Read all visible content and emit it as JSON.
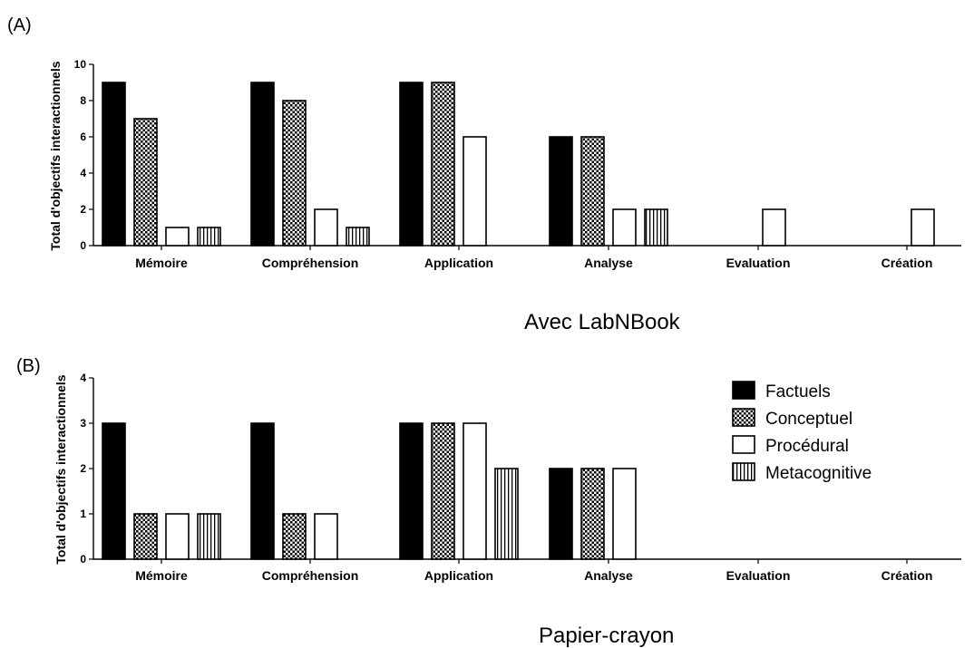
{
  "colors": {
    "ink": "#000000",
    "paper": "#ffffff"
  },
  "legend": {
    "placement": "right",
    "items": [
      {
        "label": "Factuels",
        "pattern": "solid"
      },
      {
        "label": "Conceptuel",
        "pattern": "checker"
      },
      {
        "label": "Procédural",
        "pattern": "empty"
      },
      {
        "label": "Metacognitive",
        "pattern": "vstripes"
      }
    ]
  },
  "chart_data": [
    {
      "type": "bar",
      "panel": "(A)",
      "caption": "Avec LabNBook",
      "ylabel": "Total d'objectifs interactionnels",
      "xlabel": "",
      "ylim": [
        0,
        10
      ],
      "yticks": [
        0,
        2,
        4,
        6,
        8,
        10
      ],
      "categories": [
        "Mémoire",
        "Compréhension",
        "Application",
        "Analyse",
        "Evaluation",
        "Création"
      ],
      "series": [
        {
          "name": "Factuels",
          "values": [
            9,
            9,
            9,
            6,
            0,
            0
          ]
        },
        {
          "name": "Conceptuel",
          "values": [
            7,
            8,
            9,
            6,
            0,
            0
          ]
        },
        {
          "name": "Procédural",
          "values": [
            1,
            2,
            6,
            2,
            2,
            2
          ]
        },
        {
          "name": "Metacognitive",
          "values": [
            1,
            1,
            0,
            2,
            0,
            0
          ]
        }
      ]
    },
    {
      "type": "bar",
      "panel": "(B)",
      "caption": "Papier-crayon",
      "ylabel": "Total d'objectifs interactionnels",
      "xlabel": "",
      "ylim": [
        0,
        4
      ],
      "yticks": [
        0,
        1,
        2,
        3,
        4
      ],
      "categories": [
        "Mémoire",
        "Compréhension",
        "Application",
        "Analyse",
        "Evaluation",
        "Création"
      ],
      "series": [
        {
          "name": "Factuels",
          "values": [
            3,
            3,
            3,
            2,
            0,
            0
          ]
        },
        {
          "name": "Conceptuel",
          "values": [
            1,
            1,
            3,
            2,
            0,
            0
          ]
        },
        {
          "name": "Procédural",
          "values": [
            1,
            1,
            3,
            2,
            0,
            0
          ]
        },
        {
          "name": "Metacognitive",
          "values": [
            1,
            0,
            2,
            0,
            0,
            0
          ]
        }
      ]
    }
  ]
}
